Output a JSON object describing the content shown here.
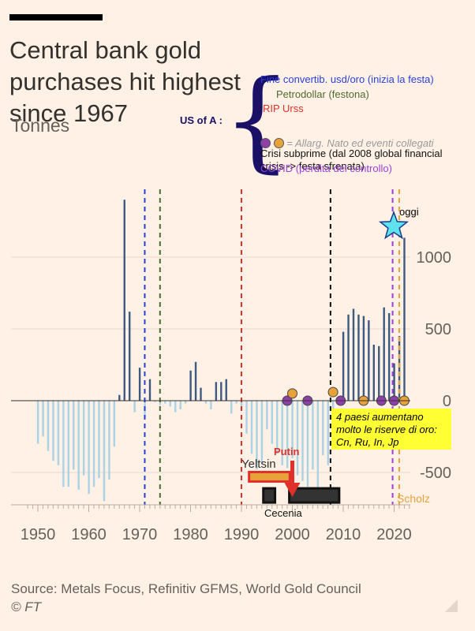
{
  "header": {
    "title": "Central bank gold purchases hit highest since 1967",
    "subtitle": "Tonnes"
  },
  "footer": {
    "source": "Source: Metals Focus, Refinitiv GFMS, World Gold Council",
    "credit": "© FT"
  },
  "annotations": {
    "us_of_a": "US of A :",
    "fine_convertib": "Fine convertib. usd/oro (inizia la festa)",
    "petrodollar": "Petrodollar (festona)",
    "rip_urss": "RIP Urss",
    "nato": "= Allarg. Nato ed eventi collegati",
    "crisi": "Crisi subprime (dal 2008 global financial crisis -> festa sfrenata)",
    "covid": "COVID (perdita del controllo)",
    "oggi": "oggi",
    "scholz": "Scholz",
    "yeltsin": "Yeltsin",
    "putin": "Putin",
    "cecenia": "Cecenia",
    "yellow_box": "4 paesi aumentano molto le riserve di oro: Cn, Ru, In, Jp"
  },
  "colors": {
    "positive_bar": "#3d5a80",
    "negative_bar": "#a9d2e6",
    "blue_line": "#2a3fd6",
    "green_line": "#4e6b2e",
    "red_line": "#e0302a",
    "black_line": "#111111",
    "purple_line": "#9b3fd6",
    "orange_line": "#e8a23a",
    "star": "#5ee3ee"
  },
  "chart_data": {
    "type": "bar",
    "title": "Central bank gold purchases hit highest since 1967",
    "ylabel": "Tonnes",
    "xlim": [
      1948,
      2023
    ],
    "ylim": [
      -700,
      1400
    ],
    "yticks": [
      1000,
      500,
      0,
      -500
    ],
    "xticks": [
      1950,
      1960,
      1970,
      1980,
      1990,
      2000,
      2010,
      2020
    ],
    "years": [
      1950,
      1951,
      1952,
      1953,
      1954,
      1955,
      1956,
      1957,
      1958,
      1959,
      1960,
      1961,
      1962,
      1963,
      1964,
      1965,
      1966,
      1967,
      1968,
      1969,
      1970,
      1971,
      1972,
      1973,
      1974,
      1975,
      1976,
      1977,
      1978,
      1979,
      1980,
      1981,
      1982,
      1983,
      1984,
      1985,
      1986,
      1987,
      1988,
      1989,
      1990,
      1991,
      1992,
      1993,
      1994,
      1995,
      1996,
      1997,
      1998,
      1999,
      2000,
      2001,
      2002,
      2003,
      2004,
      2005,
      2006,
      2007,
      2008,
      2009,
      2010,
      2011,
      2012,
      2013,
      2014,
      2015,
      2016,
      2017,
      2018,
      2019,
      2020,
      2021,
      2022
    ],
    "values": [
      -300,
      -250,
      -350,
      -420,
      -450,
      -600,
      -600,
      -480,
      -620,
      -520,
      -650,
      -600,
      -540,
      -700,
      -550,
      -320,
      40,
      1400,
      620,
      -80,
      230,
      -120,
      150,
      -10,
      -30,
      -20,
      -40,
      -80,
      -60,
      -20,
      210,
      270,
      90,
      -20,
      -60,
      130,
      130,
      150,
      -90,
      -20,
      -70,
      -230,
      -370,
      -480,
      -440,
      -200,
      -300,
      -370,
      -450,
      -470,
      -400,
      -520,
      -560,
      -600,
      -480,
      -670,
      -380,
      -450,
      -230,
      -30,
      480,
      600,
      640,
      600,
      590,
      560,
      390,
      380,
      650,
      610,
      260,
      450,
      1135
    ],
    "vertical_lines": [
      {
        "year": 1971,
        "style": "dashed",
        "color": "#2a3fd6"
      },
      {
        "year": 1974,
        "style": "dashed",
        "color": "#4e6b2e"
      },
      {
        "year": 1990,
        "style": "dashed",
        "color": "#e0302a"
      },
      {
        "year": 2007.5,
        "style": "dashed",
        "color": "#111111"
      },
      {
        "year": 2019.7,
        "style": "dashed",
        "color": "#9b3fd6"
      },
      {
        "year": 2021,
        "style": "dashed",
        "color": "#e8a23a"
      }
    ],
    "event_dots": [
      {
        "year": 1999,
        "y": 0,
        "color": "#8e3fa8"
      },
      {
        "year": 2000,
        "y": 50,
        "color": "#e8a23a"
      },
      {
        "year": 2003,
        "y": 0,
        "color": "#8e3fa8"
      },
      {
        "year": 2008,
        "y": 60,
        "color": "#e8a23a"
      },
      {
        "year": 2009.5,
        "y": 0,
        "color": "#8e3fa8"
      },
      {
        "year": 2014,
        "y": 0,
        "color": "#e8a23a"
      },
      {
        "year": 2017.5,
        "y": 0,
        "color": "#8e3fa8"
      },
      {
        "year": 2020,
        "y": 0,
        "color": "#8e3fa8"
      },
      {
        "year": 2022,
        "y": 0,
        "color": "#e8a23a"
      }
    ],
    "periods": [
      {
        "name": "Yeltsin",
        "start": 1991.5,
        "end": 1999.5,
        "y": -530,
        "fill": "#e8a23a",
        "stroke": "#e0302a"
      },
      {
        "name": "Cecenia-1",
        "start": 1994.3,
        "end": 1996.6,
        "y": -660,
        "fill": "#333333",
        "stroke": "#111111"
      },
      {
        "name": "Cecenia-2",
        "start": 1999.4,
        "end": 2009.2,
        "y": -660,
        "fill": "#333333",
        "stroke": "#111111"
      }
    ]
  }
}
